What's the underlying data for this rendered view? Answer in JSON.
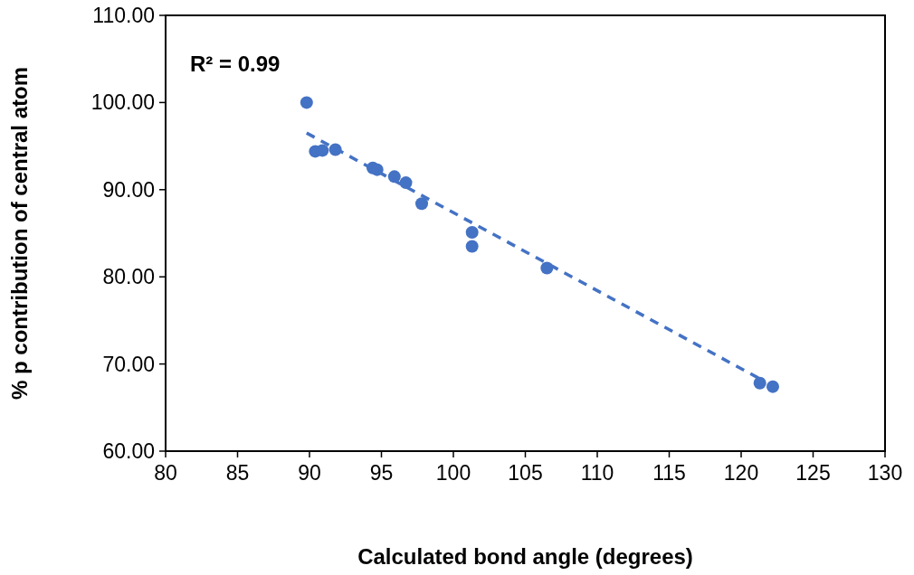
{
  "chart_data": {
    "type": "scatter",
    "xlabel": "Calculated bond angle (degrees)",
    "ylabel": "% p contribution of central atom",
    "annotations": [
      "R² = 0.99"
    ],
    "xlim": [
      80,
      130
    ],
    "xticks": [
      80,
      85,
      90,
      95,
      100,
      105,
      110,
      115,
      120,
      125,
      130
    ],
    "ylim": [
      60,
      110
    ],
    "yticks": [
      {
        "value": 60,
        "label": "60.00"
      },
      {
        "value": 70,
        "label": "70.00"
      },
      {
        "value": 80,
        "label": "80.00"
      },
      {
        "value": 90,
        "label": "90.00"
      },
      {
        "value": 100,
        "label": "100.00"
      },
      {
        "value": 110,
        "label": "110.00"
      }
    ],
    "grid": false,
    "marker": "circle",
    "series": [
      {
        "color": "#4472c4",
        "x": [
          89.8,
          90.4,
          90.9,
          91.8,
          94.4,
          94.7,
          95.9,
          96.7,
          97.8,
          101.3,
          101.3,
          106.5,
          121.3,
          122.2
        ],
        "values": [
          100.0,
          94.4,
          94.5,
          94.6,
          92.5,
          92.3,
          91.5,
          90.8,
          88.4,
          85.1,
          83.5,
          81.0,
          67.8,
          67.4
        ]
      },
      {
        "type": "line",
        "color": "#4472c4",
        "line_style": "dashed",
        "marker": "none",
        "x": [
          89.8,
          121.3
        ],
        "values": [
          96.5,
          68.3
        ]
      }
    ]
  }
}
